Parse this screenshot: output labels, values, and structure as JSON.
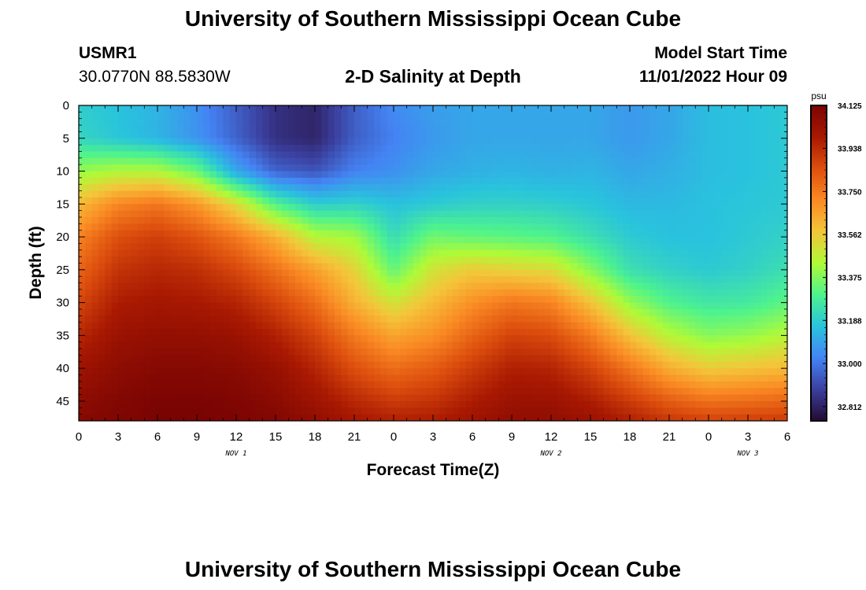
{
  "header": {
    "title": "University of Southern Mississippi Ocean Cube",
    "station_id": "USMR1",
    "station_coords": "30.0770N  88.5830W",
    "plot_subtitle": "2-D Salinity at Depth",
    "model_start_label": "Model Start Time",
    "model_start_value": "11/01/2022 Hour 09"
  },
  "footer": {
    "title": "University of Southern Mississippi Ocean Cube"
  },
  "chart_data": {
    "type": "heatmap",
    "title": "2-D Salinity at Depth",
    "xlabel": "Forecast Time(Z)",
    "ylabel": "Depth (ft)",
    "x_ticks": [
      "0",
      "3",
      "6",
      "9",
      "12",
      "15",
      "18",
      "21",
      "0",
      "3",
      "6",
      "9",
      "12",
      "15",
      "18",
      "21",
      "0",
      "3",
      "6"
    ],
    "x_hours": [
      0,
      3,
      6,
      9,
      12,
      15,
      18,
      21,
      24,
      27,
      30,
      33,
      36,
      39,
      42,
      45,
      48,
      51,
      54
    ],
    "xlim": [
      0,
      54
    ],
    "date_labels": [
      {
        "text": "NOV 1",
        "hour": 12
      },
      {
        "text": "NOV 2",
        "hour": 36
      },
      {
        "text": "NOV 3",
        "hour": 51
      }
    ],
    "y_ticks": [
      "0",
      "5",
      "10",
      "15",
      "20",
      "25",
      "30",
      "35",
      "40",
      "45"
    ],
    "y_values": [
      0,
      5,
      10,
      15,
      20,
      25,
      30,
      35,
      40,
      45
    ],
    "ylim": [
      0,
      48
    ],
    "colorbar": {
      "unit": "psu",
      "ticks": [
        "34.125",
        "33.938",
        "33.750",
        "33.562",
        "33.375",
        "33.188",
        "33.000",
        "32.812"
      ],
      "range": [
        32.75,
        34.125
      ],
      "colors": [
        "#230b33",
        "#3b3f9e",
        "#4484f4",
        "#29c3dd",
        "#4ef38d",
        "#b0fa37",
        "#f4c53a",
        "#fa8a24",
        "#dd4f0e",
        "#a91902",
        "#7a0403"
      ]
    },
    "salinity": {
      "hours": [
        0,
        3,
        6,
        9,
        12,
        15,
        18,
        21,
        24,
        27,
        30,
        33,
        36,
        39,
        42,
        45,
        48,
        51,
        54
      ],
      "depths": [
        0,
        5,
        10,
        15,
        20,
        25,
        30,
        35,
        40,
        45,
        48
      ],
      "values": [
        [
          33.19,
          33.16,
          33.13,
          33.05,
          32.95,
          32.85,
          32.82,
          32.95,
          33.04,
          33.08,
          33.1,
          33.1,
          33.1,
          33.1,
          33.07,
          33.1,
          33.15,
          33.16,
          33.18
        ],
        [
          33.21,
          33.17,
          33.13,
          33.06,
          32.96,
          32.85,
          32.82,
          32.95,
          33.02,
          33.07,
          33.1,
          33.1,
          33.1,
          33.1,
          33.07,
          33.1,
          33.15,
          33.16,
          33.18
        ],
        [
          33.4,
          33.44,
          33.44,
          33.34,
          33.1,
          32.96,
          32.93,
          33.02,
          33.05,
          33.1,
          33.12,
          33.13,
          33.12,
          33.13,
          33.1,
          33.12,
          33.15,
          33.16,
          33.18
        ],
        [
          33.6,
          33.72,
          33.76,
          33.68,
          33.52,
          33.3,
          33.19,
          33.2,
          33.16,
          33.18,
          33.2,
          33.2,
          33.19,
          33.17,
          33.14,
          33.14,
          33.16,
          33.17,
          33.18
        ],
        [
          33.73,
          33.85,
          33.89,
          33.84,
          33.75,
          33.62,
          33.45,
          33.42,
          33.23,
          33.35,
          33.33,
          33.32,
          33.3,
          33.24,
          33.18,
          33.16,
          33.16,
          33.18,
          33.2
        ],
        [
          33.8,
          33.92,
          33.95,
          33.93,
          33.87,
          33.77,
          33.66,
          33.54,
          33.33,
          33.5,
          33.56,
          33.54,
          33.52,
          33.38,
          33.24,
          33.2,
          33.18,
          33.2,
          33.24
        ],
        [
          33.87,
          33.98,
          34.0,
          33.99,
          33.96,
          33.88,
          33.78,
          33.62,
          33.5,
          33.6,
          33.7,
          33.76,
          33.73,
          33.58,
          33.4,
          33.3,
          33.26,
          33.27,
          33.32
        ],
        [
          33.95,
          34.03,
          34.05,
          34.05,
          34.03,
          33.97,
          33.88,
          33.75,
          33.65,
          33.7,
          33.8,
          33.88,
          33.86,
          33.75,
          33.58,
          33.45,
          33.38,
          33.4,
          33.45
        ],
        [
          34.02,
          34.07,
          34.09,
          34.09,
          34.08,
          34.04,
          33.96,
          33.85,
          33.78,
          33.82,
          33.9,
          33.97,
          33.96,
          33.88,
          33.76,
          33.63,
          33.56,
          33.58,
          33.6
        ],
        [
          34.07,
          34.1,
          34.12,
          34.12,
          34.11,
          34.08,
          34.02,
          33.95,
          33.9,
          33.92,
          33.98,
          34.03,
          34.03,
          33.98,
          33.9,
          33.82,
          33.77,
          33.78,
          33.8
        ],
        [
          34.09,
          34.11,
          34.125,
          34.125,
          34.12,
          34.1,
          34.06,
          34.0,
          33.97,
          33.98,
          34.02,
          34.06,
          34.06,
          34.03,
          33.97,
          33.91,
          33.88,
          33.89,
          33.9
        ]
      ]
    }
  }
}
